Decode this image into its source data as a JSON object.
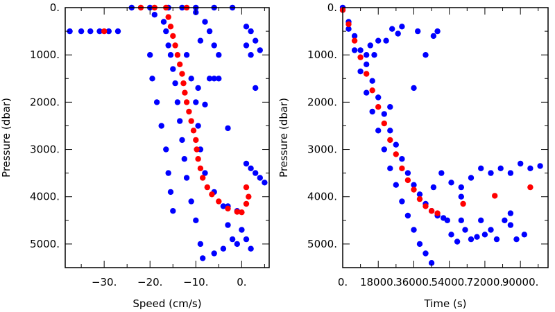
{
  "chart_data": [
    {
      "type": "scatter",
      "xlabel": "Speed (cm/s)",
      "ylabel": "Pressure (dbar)",
      "xlim": [
        -38.5,
        6.0
      ],
      "ylim": [
        5500,
        0
      ],
      "x_ticks": [
        -30,
        -20,
        -10,
        0
      ],
      "x_tick_labels": [
        "−30.",
        "−20.",
        "−10.",
        "0."
      ],
      "y_ticks": [
        0,
        1000,
        2000,
        3000,
        4000,
        5000
      ],
      "y_tick_labels": [
        "0.",
        "1000.",
        "2000.",
        "3000.",
        "4000.",
        "5000."
      ],
      "series": [
        {
          "color": "#0000ff",
          "points": [
            [
              -37.5,
              500
            ],
            [
              -35,
              500
            ],
            [
              -33,
              500
            ],
            [
              -31,
              500
            ],
            [
              -29,
              500
            ],
            [
              -27,
              500
            ],
            [
              -24,
              0
            ],
            [
              -20,
              0
            ],
            [
              -16,
              0
            ],
            [
              -13,
              0
            ],
            [
              -10,
              0
            ],
            [
              -6,
              0
            ],
            [
              -2,
              0
            ],
            [
              -19,
              150
            ],
            [
              -17,
              300
            ],
            [
              -16.5,
              500
            ],
            [
              -16,
              800
            ],
            [
              -15.5,
              1000
            ],
            [
              -15,
              1300
            ],
            [
              -14.5,
              1600
            ],
            [
              -14,
              2000
            ],
            [
              -13.5,
              2400
            ],
            [
              -13,
              2800
            ],
            [
              -12.5,
              3200
            ],
            [
              -12,
              3600
            ],
            [
              -11,
              4100
            ],
            [
              -10,
              4500
            ],
            [
              -9,
              5000
            ],
            [
              -8.5,
              5300
            ],
            [
              -20,
              1000
            ],
            [
              -19.5,
              1500
            ],
            [
              -18.5,
              2000
            ],
            [
              -17.5,
              2500
            ],
            [
              -16.5,
              3000
            ],
            [
              -16,
              3500
            ],
            [
              -15.5,
              3900
            ],
            [
              -15,
              4300
            ],
            [
              -12,
              1000
            ],
            [
              -11,
              1500
            ],
            [
              -10,
              2000
            ],
            [
              -9.5,
              2500
            ],
            [
              -9,
              3000
            ],
            [
              -8,
              3500
            ],
            [
              -6,
              3900
            ],
            [
              -3,
              4200
            ],
            [
              -1,
              4300
            ],
            [
              -10,
              100
            ],
            [
              -8,
              300
            ],
            [
              -7,
              500
            ],
            [
              -6,
              800
            ],
            [
              -5,
              1000
            ],
            [
              -9,
              700
            ],
            [
              -4,
              4200
            ],
            [
              -3,
              4600
            ],
            [
              -2,
              4900
            ],
            [
              -4,
              5100
            ],
            [
              -1,
              5000
            ],
            [
              0,
              4700
            ],
            [
              1,
              4900
            ],
            [
              2,
              5100
            ],
            [
              -6,
              5200
            ],
            [
              1,
              3300
            ],
            [
              2,
              3400
            ],
            [
              3,
              3500
            ],
            [
              4,
              3600
            ],
            [
              5,
              3700
            ],
            [
              1,
              400
            ],
            [
              2,
              500
            ],
            [
              3,
              700
            ],
            [
              4,
              900
            ],
            [
              2,
              1000
            ],
            [
              1,
              800
            ],
            [
              -7,
              1500
            ],
            [
              -6,
              1500
            ],
            [
              -5,
              1500
            ],
            [
              -9.5,
              1700
            ],
            [
              -8,
              2050
            ],
            [
              -3,
              2550
            ],
            [
              3,
              1700
            ]
          ]
        },
        {
          "color": "#ff0000",
          "points": [
            [
              -30,
              500
            ],
            [
              -22,
              0
            ],
            [
              -19,
              0
            ],
            [
              -16.5,
              0
            ],
            [
              -12,
              0
            ],
            [
              -16,
              200
            ],
            [
              -15.5,
              400
            ],
            [
              -15,
              600
            ],
            [
              -14.5,
              800
            ],
            [
              -14,
              1000
            ],
            [
              -13.5,
              1200
            ],
            [
              -13,
              1400
            ],
            [
              -12.7,
              1600
            ],
            [
              -12.4,
              1800
            ],
            [
              -12,
              2000
            ],
            [
              -11.5,
              2200
            ],
            [
              -11,
              2400
            ],
            [
              -10.5,
              2600
            ],
            [
              -10,
              2800
            ],
            [
              -9.8,
              3000
            ],
            [
              -9.5,
              3200
            ],
            [
              -9,
              3400
            ],
            [
              -8.5,
              3600
            ],
            [
              -7.5,
              3800
            ],
            [
              -6.5,
              3950
            ],
            [
              -5,
              4100
            ],
            [
              -3,
              4250
            ],
            [
              -1,
              4320
            ],
            [
              0,
              4330
            ],
            [
              1,
              3800
            ],
            [
              1.5,
              4000
            ],
            [
              1,
              4150
            ]
          ]
        }
      ]
    },
    {
      "type": "scatter",
      "xlabel": "Time (s)",
      "ylabel": "Pressure (dbar)",
      "xlim": [
        0,
        104000
      ],
      "ylim": [
        5500,
        0
      ],
      "x_ticks": [
        0,
        18000,
        36000,
        54000,
        72000,
        90000
      ],
      "x_tick_labels": [
        "0.",
        "18000.",
        "36000.",
        "54000.",
        "72000.",
        "90000."
      ],
      "y_ticks": [
        0,
        1000,
        2000,
        3000,
        4000,
        5000
      ],
      "y_tick_labels": [
        "0.",
        "1000.",
        "2000.",
        "3000.",
        "4000.",
        "5000."
      ],
      "series": [
        {
          "color": "#0000ff",
          "points": [
            [
              0,
              0
            ],
            [
              3000,
              450
            ],
            [
              6000,
              900
            ],
            [
              9000,
              1350
            ],
            [
              12000,
              1800
            ],
            [
              15000,
              2200
            ],
            [
              18000,
              2600
            ],
            [
              21000,
              3000
            ],
            [
              24000,
              3400
            ],
            [
              27000,
              3750
            ],
            [
              30000,
              4100
            ],
            [
              33000,
              4400
            ],
            [
              36000,
              4700
            ],
            [
              39000,
              5000
            ],
            [
              42000,
              5200
            ],
            [
              45000,
              5400
            ],
            [
              0,
              50
            ],
            [
              3000,
              300
            ],
            [
              6000,
              600
            ],
            [
              9000,
              900
            ],
            [
              12000,
              1200
            ],
            [
              15000,
              1550
            ],
            [
              18000,
              1900
            ],
            [
              21000,
              2250
            ],
            [
              24000,
              2600
            ],
            [
              27000,
              2900
            ],
            [
              30000,
              3200
            ],
            [
              33000,
              3500
            ],
            [
              36000,
              3750
            ],
            [
              39000,
              3950
            ],
            [
              42000,
              4150
            ],
            [
              45000,
              4300
            ],
            [
              48000,
              4400
            ],
            [
              51000,
              4450
            ],
            [
              53000,
              4500
            ],
            [
              12000,
              1000
            ],
            [
              14000,
              800
            ],
            [
              16000,
              1000
            ],
            [
              18000,
              700
            ],
            [
              22000,
              700
            ],
            [
              25000,
              450
            ],
            [
              28000,
              550
            ],
            [
              30000,
              400
            ],
            [
              38000,
              500
            ],
            [
              42000,
              1000
            ],
            [
              46000,
              600
            ],
            [
              48000,
              500
            ],
            [
              36000,
              1700
            ],
            [
              24000,
              2100
            ],
            [
              50000,
              3500
            ],
            [
              55000,
              3700
            ],
            [
              60000,
              3800
            ],
            [
              65000,
              3600
            ],
            [
              70000,
              3400
            ],
            [
              75000,
              3500
            ],
            [
              80000,
              3400
            ],
            [
              85000,
              3500
            ],
            [
              90000,
              3300
            ],
            [
              95000,
              3400
            ],
            [
              100000,
              3350
            ],
            [
              46000,
              3800
            ],
            [
              60000,
              4000
            ],
            [
              55000,
              4800
            ],
            [
              58000,
              4950
            ],
            [
              62000,
              4700
            ],
            [
              65000,
              4900
            ],
            [
              70000,
              4500
            ],
            [
              72000,
              4800
            ],
            [
              75000,
              4700
            ],
            [
              78000,
              4900
            ],
            [
              82000,
              4500
            ],
            [
              85000,
              4600
            ],
            [
              88000,
              4900
            ],
            [
              92000,
              4800
            ],
            [
              60000,
              4500
            ],
            [
              68000,
              4850
            ],
            [
              85000,
              4350
            ]
          ]
        },
        {
          "color": "#ff0000",
          "points": [
            [
              0,
              50
            ],
            [
              3000,
              350
            ],
            [
              6000,
              700
            ],
            [
              9000,
              1050
            ],
            [
              12000,
              1400
            ],
            [
              15000,
              1750
            ],
            [
              18000,
              2100
            ],
            [
              21000,
              2450
            ],
            [
              24000,
              2800
            ],
            [
              27000,
              3100
            ],
            [
              30000,
              3400
            ],
            [
              33000,
              3650
            ],
            [
              36000,
              3850
            ],
            [
              39000,
              4050
            ],
            [
              42000,
              4200
            ],
            [
              45000,
              4300
            ],
            [
              48000,
              4350
            ],
            [
              61000,
              4150
            ],
            [
              77000,
              3980
            ],
            [
              95000,
              3800
            ]
          ]
        }
      ]
    }
  ]
}
